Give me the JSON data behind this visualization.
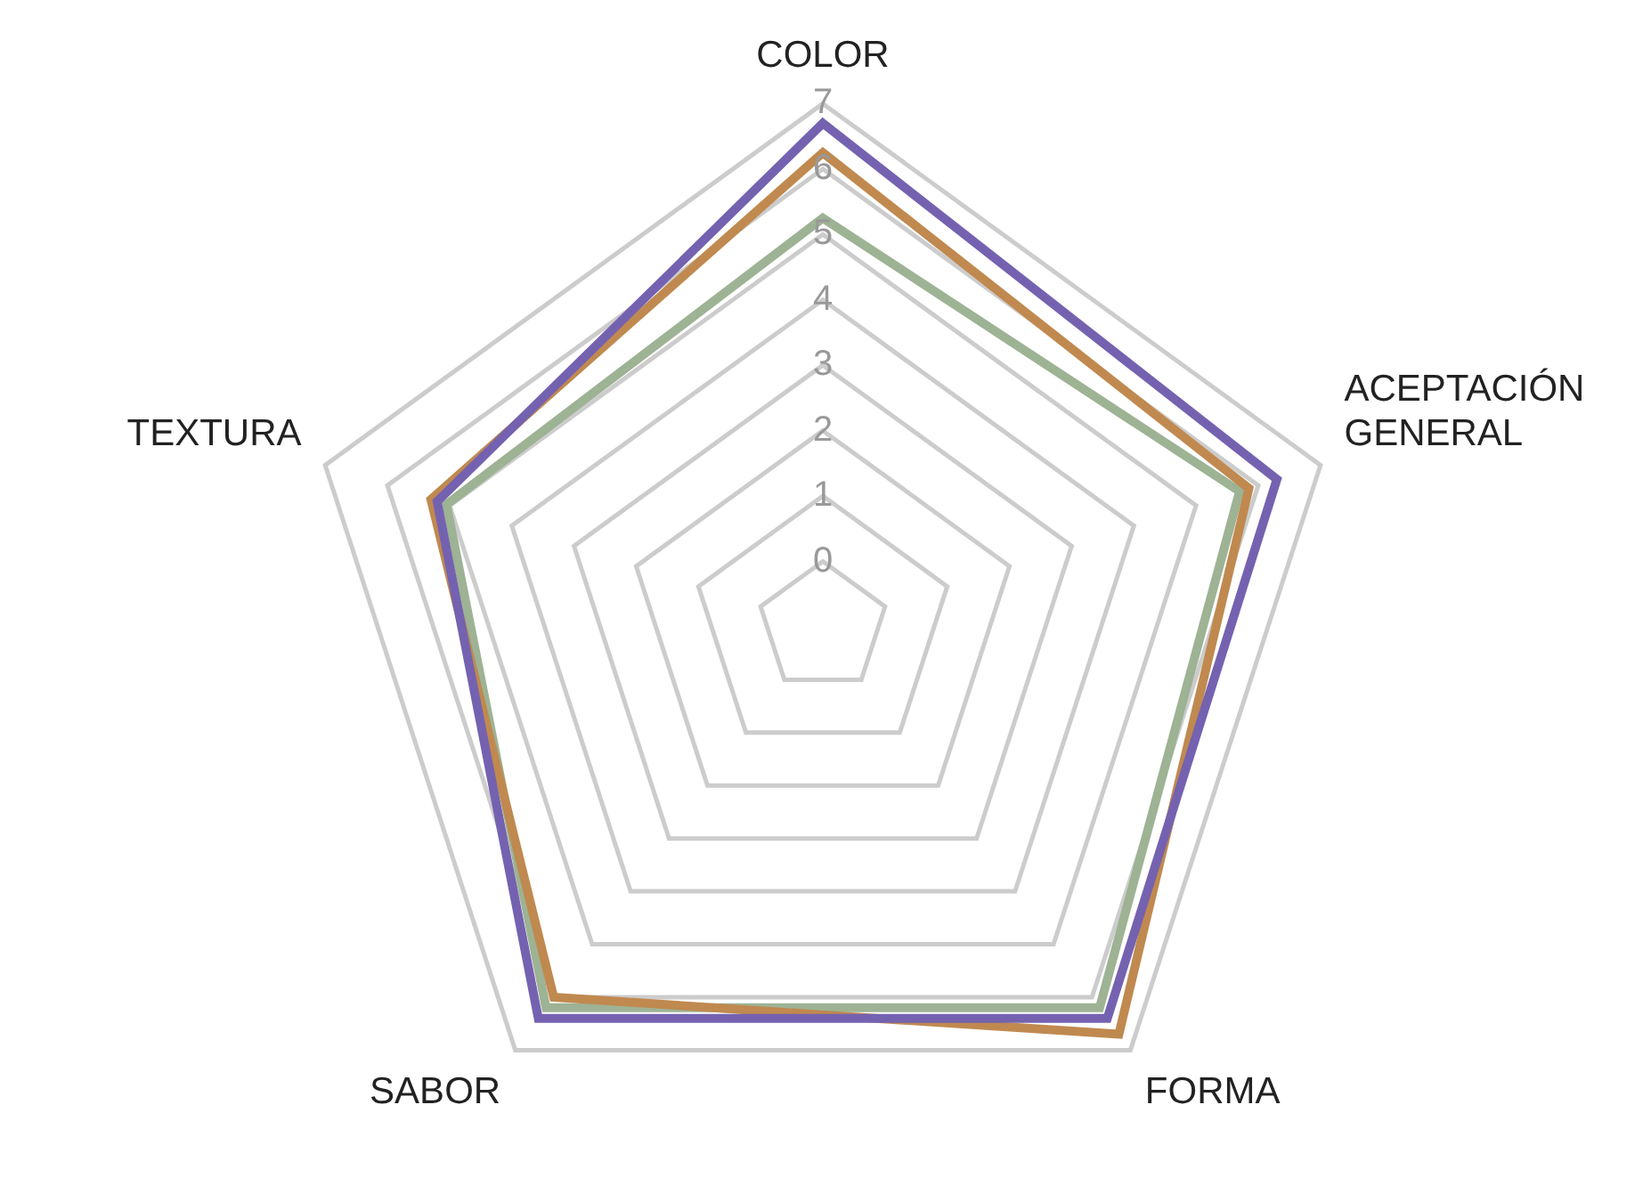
{
  "chart_data": {
    "type": "radar",
    "categories": [
      "COLOR",
      "ACEPTACIÓN GENERAL",
      "FORMA",
      "SABOR",
      "TEXTURA"
    ],
    "series": [
      {
        "color": "#7462b0",
        "values": [
          6.7,
          6.3,
          6.4,
          6.4,
          5.2
        ]
      },
      {
        "color": "#c0894f",
        "values": [
          6.25,
          5.85,
          6.7,
          6.0,
          5.3
        ]
      },
      {
        "color": "#9db394",
        "values": [
          5.25,
          5.7,
          6.2,
          6.2,
          5.05
        ]
      }
    ],
    "ylim": [
      -1,
      7
    ],
    "yticks": [
      0,
      1,
      2,
      3,
      4,
      5,
      6,
      7
    ],
    "grid": true,
    "legend": false
  }
}
